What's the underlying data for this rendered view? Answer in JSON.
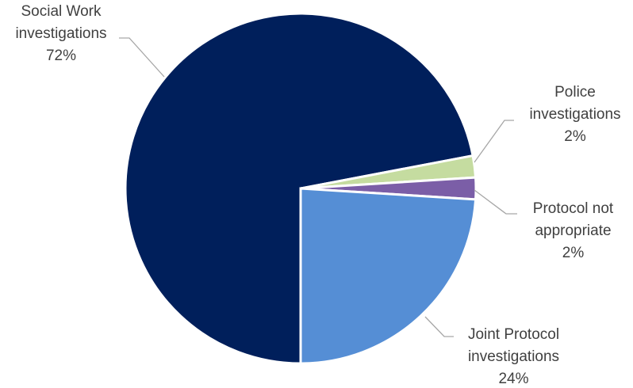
{
  "chart_data": {
    "type": "pie",
    "categories": [
      "Social Work investigations",
      "Police investigations",
      "Protocol not appropriate",
      "Joint Protocol investigations"
    ],
    "values": [
      72,
      2,
      2,
      24
    ],
    "value_labels": [
      "72%",
      "2%",
      "2%",
      "24%"
    ],
    "colors": [
      "#001f5b",
      "#c5dca0",
      "#7b5ea7",
      "#558ed5"
    ]
  }
}
